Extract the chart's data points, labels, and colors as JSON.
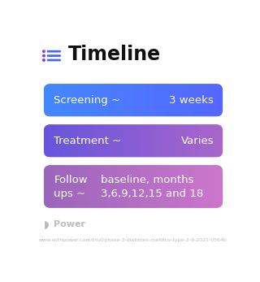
{
  "title": "Timeline",
  "title_fontsize": 17,
  "title_color": "#111111",
  "icon_color": "#7744ee",
  "icon_line_color": "#4466ff",
  "background_color": "#ffffff",
  "rows": [
    {
      "label": "Screening ~",
      "value": "3 weeks",
      "color_left": "#4488ff",
      "color_right": "#5566ff",
      "text_color": "#ffffff",
      "fontsize": 9.5,
      "multiline": false
    },
    {
      "label": "Treatment ~",
      "value": "Varies",
      "color_left": "#6655dd",
      "color_right": "#aa66cc",
      "text_color": "#ffffff",
      "fontsize": 9.5,
      "multiline": false
    },
    {
      "label": "Follow\nups ~",
      "value": "baseline, months\n3,6,9,12,15 and 18",
      "color_left": "#9966bb",
      "color_right": "#cc77cc",
      "text_color": "#ffffff",
      "fontsize": 9.5,
      "multiline": true
    }
  ],
  "footer_text": "Power",
  "footer_color": "#bbbbbb",
  "url_text": "www.withpower.com/trial/phase-3-diabetes-mellitus-type-2-9-2021-0564b",
  "url_color": "#bbbbbb",
  "url_fontsize": 4.5,
  "footer_fontsize": 8
}
